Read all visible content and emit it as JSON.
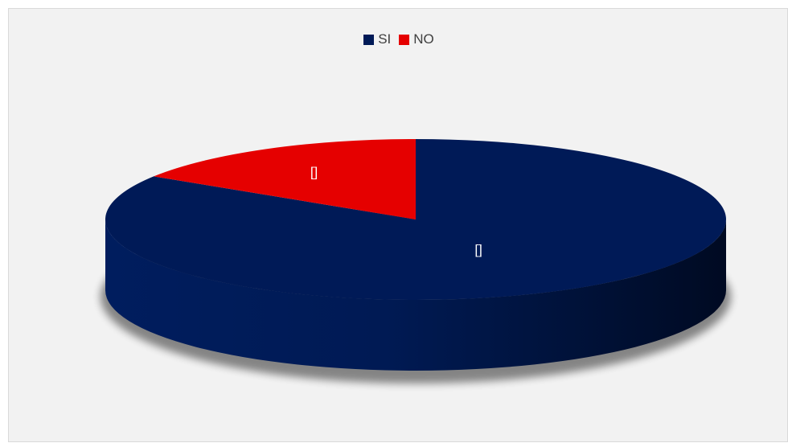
{
  "chart_data": {
    "type": "pie",
    "style": "3d",
    "legend_position": "top",
    "categories": [
      "SI",
      "NO"
    ],
    "values": [
      84,
      16
    ],
    "colors": [
      "#001a57",
      "#e50000"
    ],
    "data_labels": [
      "[]",
      "[]"
    ]
  },
  "legend": {
    "items": [
      {
        "label": "SI",
        "color": "#001a57"
      },
      {
        "label": "NO",
        "color": "#e50000"
      }
    ]
  }
}
